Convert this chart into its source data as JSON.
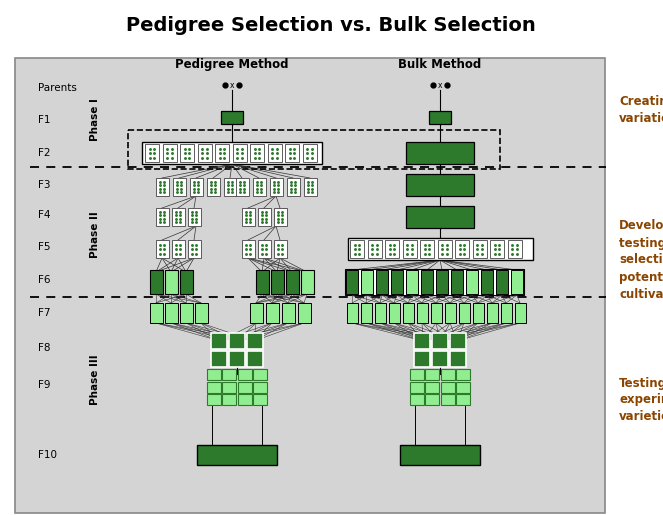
{
  "title": "Pedigree Selection vs. Bulk Selection",
  "bg_color": "#d4d4d4",
  "dark_green": "#2d7a2d",
  "light_green": "#90ee90",
  "col_headers": [
    "Pedigree Method",
    "Bulk Method"
  ],
  "right_labels": [
    "Creating\nvariation",
    "Developing,\ntesting &\nselecting\npotential\ncultivars",
    "Testing\nexperimental\nvarieties"
  ],
  "gen_labels": [
    "Parents",
    "F1",
    "F2",
    "F3",
    "F4",
    "F5",
    "F6",
    "F7",
    "F8",
    "F9",
    "F10"
  ]
}
